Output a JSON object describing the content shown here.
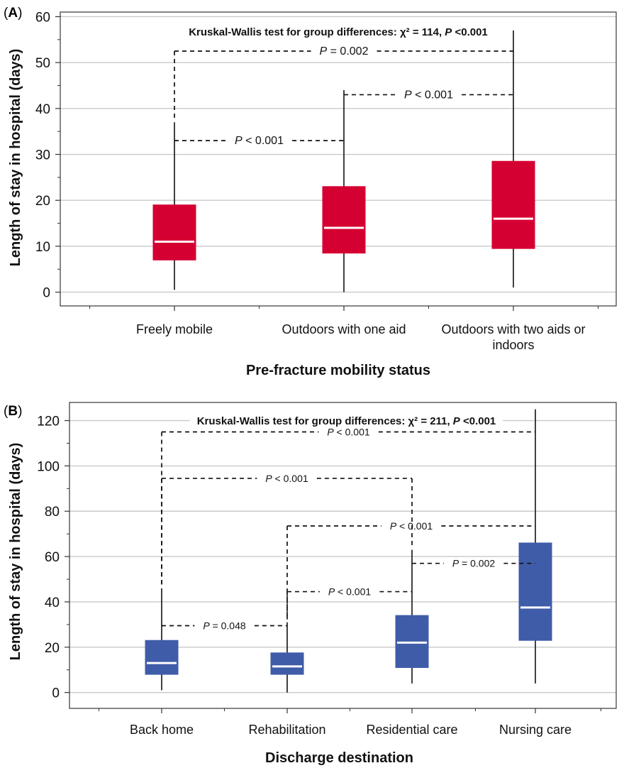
{
  "chart_data": [
    {
      "type": "box",
      "panel_label": "(A)",
      "title": "Kruskal-Wallis test for group differences: χ² = 114, P <0.001",
      "xlabel": "Pre-fracture mobility status",
      "ylabel": "Length of stay in hospital (days)",
      "ylim": [
        -3,
        61
      ],
      "yticks": [
        0,
        10,
        20,
        30,
        40,
        50,
        60
      ],
      "grid": true,
      "color": "#d50032",
      "categories": [
        [
          "Freely mobile"
        ],
        [
          "Outdoors with one aid"
        ],
        [
          "Outdoors with two aids or",
          "indoors"
        ]
      ],
      "boxes": [
        {
          "min": 0.5,
          "q1": 7,
          "median": 11,
          "q3": 19,
          "max": 37
        },
        {
          "min": 0,
          "q1": 8.5,
          "median": 14,
          "q3": 23,
          "max": 44
        },
        {
          "min": 1,
          "q1": 9.5,
          "median": 16,
          "q3": 28.5,
          "max": 57
        }
      ],
      "comparisons": [
        {
          "from": 0,
          "to": 2,
          "y": 52.5,
          "p": "= 0.002"
        },
        {
          "from": 1,
          "to": 2,
          "y": 43,
          "p": "< 0.001"
        },
        {
          "from": 0,
          "to": 1,
          "y": 33,
          "p": "< 0.001"
        }
      ]
    },
    {
      "type": "box",
      "panel_label": "(B)",
      "title": "Kruskal-Wallis test for group differences: χ² = 211, P <0.001",
      "xlabel": "Discharge destination",
      "ylabel": "Length of stay in hospital (days)",
      "ylim": [
        -7,
        128
      ],
      "yticks": [
        0,
        20,
        40,
        60,
        80,
        100,
        120
      ],
      "grid": true,
      "color": "#3f5ca8",
      "categories": [
        [
          "Back home"
        ],
        [
          "Rehabilitation"
        ],
        [
          "Residential care"
        ],
        [
          "Nursing care"
        ]
      ],
      "boxes": [
        {
          "min": 1,
          "q1": 8,
          "median": 13,
          "q3": 23,
          "max": 46
        },
        {
          "min": 0,
          "q1": 8,
          "median": 11.5,
          "q3": 17.5,
          "max": 31
        },
        {
          "min": 4,
          "q1": 11,
          "median": 22,
          "q3": 34,
          "max": 63
        },
        {
          "min": 4,
          "q1": 23,
          "median": 37.5,
          "q3": 66,
          "max": 125
        }
      ],
      "comparisons": [
        {
          "from": 0,
          "to": 3,
          "y": 115,
          "p": "< 0.001"
        },
        {
          "from": 0,
          "to": 2,
          "y": 94.5,
          "p": "< 0.001"
        },
        {
          "from": 1,
          "to": 3,
          "y": 73.5,
          "p": "< 0.001"
        },
        {
          "from": 2,
          "to": 3,
          "y": 57,
          "p": "= 0.002"
        },
        {
          "from": 1,
          "to": 2,
          "y": 44.5,
          "p": "< 0.001"
        },
        {
          "from": 0,
          "to": 1,
          "y": 29.5,
          "p": "= 0.048"
        }
      ]
    }
  ]
}
